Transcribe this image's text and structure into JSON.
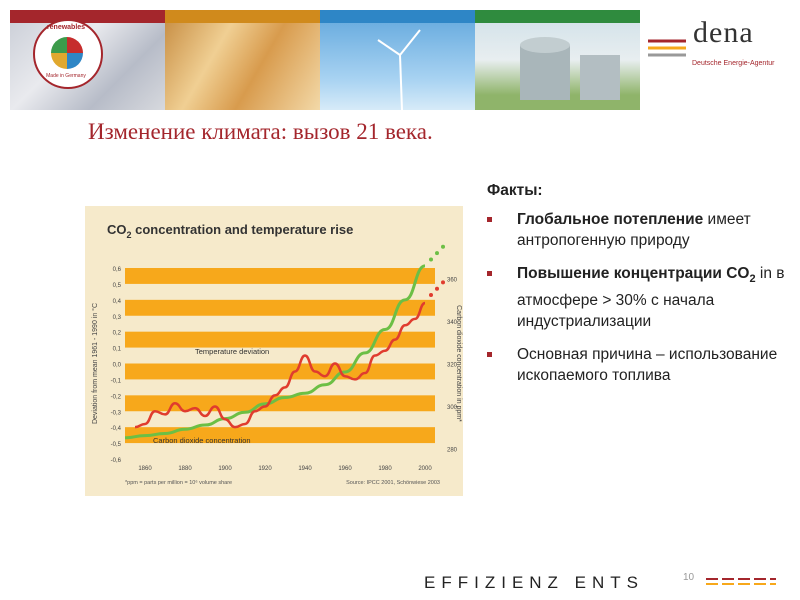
{
  "header": {
    "brand": "dena",
    "brand_subtitle": "Deutsche Energie-Agentur",
    "seal_top": "renewables",
    "seal_bottom": "Made in Germany"
  },
  "slide": {
    "title": "Изменение климата: вызов 21 века.",
    "facts_heading": "Факты:",
    "facts": [
      {
        "bold": "Глобальное потепление",
        "rest": " имеет антропогенную природу"
      },
      {
        "bold": "Повышение концентрации CO",
        "sub": "2",
        "rest": " in в атмосфере > 30% с начала индустриализации"
      },
      {
        "bold": "",
        "rest": "Основная причина – использование ископаемого топлива"
      }
    ],
    "page_number": "10",
    "footer_text": "EFFIZIENZ ENTS"
  },
  "colors": {
    "accent": "#a4262c",
    "band": "#f7a81b",
    "panel": "#f6eacb",
    "temperature": "#e03c2e",
    "co2": "#6cbf45"
  },
  "chart_data": {
    "type": "line",
    "title": "CO2 concentration and temperature rise",
    "title_main": "CO",
    "title_sub": "2",
    "title_rest": " concentration and temperature rise",
    "ylabel_left": "Deviation from mean 1961 - 1990 in °C",
    "ylabel_right": "Carbon dioxide concentration in ppm*",
    "footnote": "*ppm = parts per million = 10⁶ volume share",
    "source": "Source: IPCC 2001, Schönwiese 2003",
    "x_ticks": [
      "1860",
      "1880",
      "1900",
      "1920",
      "1940",
      "1960",
      "1980",
      "2000"
    ],
    "y_left_ticks": [
      "0,6",
      "0,5",
      "0,4",
      "0,3",
      "0,2",
      "0,1",
      "0,0",
      "-0,1",
      "-0,2",
      "-0,3",
      "-0,4",
      "-0,5",
      "-0,6"
    ],
    "y_right_ticks": [
      "360",
      "340",
      "320",
      "300",
      "280"
    ],
    "xlim": [
      1850,
      2005
    ],
    "ylim_left": [
      -0.6,
      0.6
    ],
    "ylim_right": [
      275,
      365
    ],
    "series": [
      {
        "name": "Temperature deviation",
        "axis": "left",
        "x": [
          1855,
          1860,
          1865,
          1870,
          1875,
          1880,
          1885,
          1890,
          1895,
          1900,
          1905,
          1910,
          1915,
          1920,
          1925,
          1930,
          1935,
          1940,
          1945,
          1950,
          1955,
          1960,
          1965,
          1970,
          1975,
          1980,
          1985,
          1990,
          1995,
          2000
        ],
        "y": [
          -0.4,
          -0.38,
          -0.3,
          -0.32,
          -0.25,
          -0.3,
          -0.28,
          -0.33,
          -0.27,
          -0.35,
          -0.4,
          -0.38,
          -0.3,
          -0.27,
          -0.2,
          -0.15,
          -0.05,
          0.05,
          -0.05,
          -0.08,
          0.0,
          -0.08,
          -0.1,
          -0.06,
          0.05,
          0.08,
          0.15,
          0.24,
          0.28,
          0.38
        ]
      },
      {
        "name": "Carbon dioxide concentration",
        "axis": "right",
        "x": [
          1850,
          1860,
          1870,
          1880,
          1890,
          1900,
          1910,
          1920,
          1930,
          1940,
          1950,
          1960,
          1970,
          1980,
          1990,
          2000
        ],
        "y": [
          285,
          286,
          287,
          289,
          291,
          294,
          297,
          301,
          304,
          306,
          310,
          316,
          325,
          336,
          350,
          366
        ]
      }
    ],
    "projection_points": {
      "temperature": {
        "x": [
          2003,
          2006,
          2009
        ],
        "y": [
          0.43,
          0.47,
          0.51
        ]
      },
      "co2": {
        "x": [
          2003,
          2006,
          2009
        ],
        "y": [
          369,
          372,
          375
        ]
      }
    }
  }
}
